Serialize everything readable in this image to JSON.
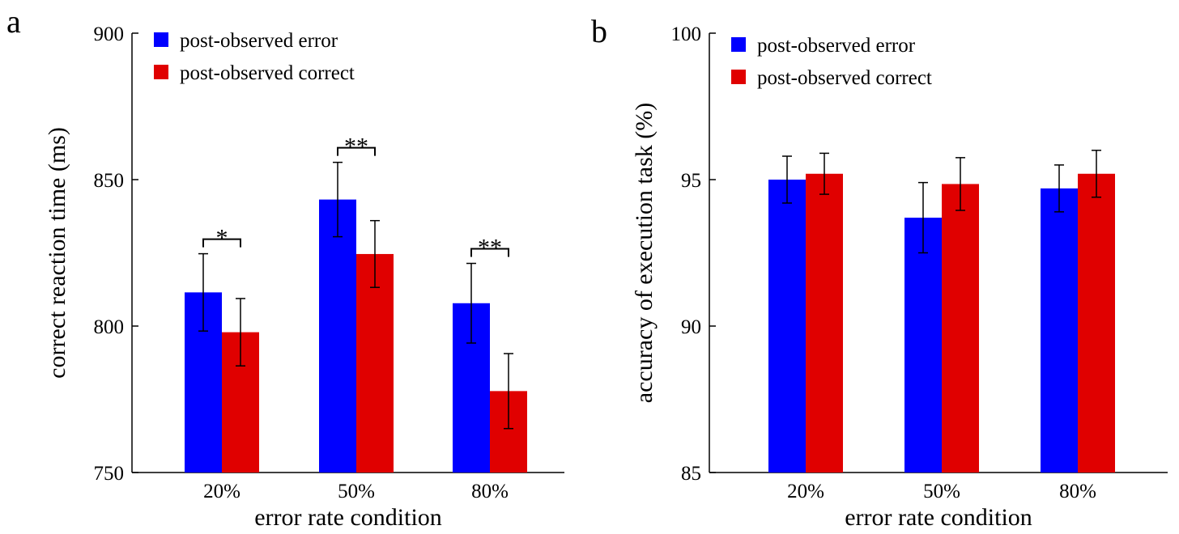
{
  "colors": {
    "post_error": "#0000ff",
    "post_correct": "#e00000"
  },
  "chart_data": [
    {
      "panel": "a",
      "type": "bar",
      "categories": [
        "20%",
        "50%",
        "80%"
      ],
      "series": [
        {
          "name": "post-observed error",
          "values": [
            811.5,
            843.2,
            807.8
          ],
          "errors": [
            13.2,
            12.7,
            13.6
          ]
        },
        {
          "name": "post-observed correct",
          "values": [
            797.9,
            824.6,
            777.8
          ],
          "errors": [
            11.5,
            11.4,
            12.8
          ]
        }
      ],
      "xlabel": "error rate condition",
      "ylabel": "correct reaction time (ms)",
      "ylim": [
        750,
        900
      ],
      "yticks": [
        750,
        800,
        850,
        900
      ],
      "ytick_labels": [
        "750",
        "800",
        "850",
        "900"
      ],
      "legend": "top-left",
      "grid": false,
      "significance": [
        "*",
        "**",
        "**"
      ]
    },
    {
      "panel": "b",
      "type": "bar",
      "categories": [
        "20%",
        "50%",
        "80%"
      ],
      "series": [
        {
          "name": "post-observed error",
          "values": [
            95.0,
            93.7,
            94.7
          ],
          "errors": [
            0.8,
            1.2,
            0.8
          ]
        },
        {
          "name": "post-observed correct",
          "values": [
            95.2,
            94.85,
            95.2
          ],
          "errors": [
            0.7,
            0.9,
            0.8
          ]
        }
      ],
      "xlabel": "error rate condition",
      "ylabel": "accuracy of execution task (%)",
      "ylim": [
        85,
        100
      ],
      "yticks": [
        85,
        90,
        95,
        100
      ],
      "ytick_labels": [
        "85",
        "90",
        "95",
        "100"
      ],
      "legend": "top-left",
      "grid": false,
      "significance": [
        "",
        "",
        ""
      ]
    }
  ]
}
